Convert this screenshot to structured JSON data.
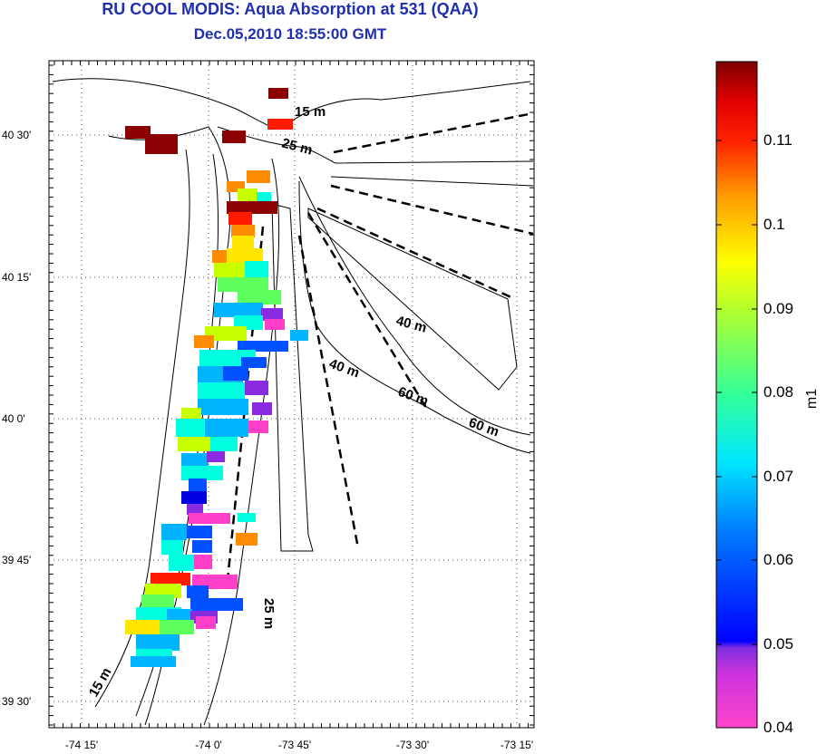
{
  "title": "RU COOL MODIS: Aqua Absorption at 531 (QAA)",
  "subtitle": "Dec.05,2010 18:55:00 GMT",
  "map": {
    "x_ticks": [
      "-74 15'",
      "-74 0'",
      "-73 45'",
      "-73 30'",
      "-73 15'"
    ],
    "y_ticks": [
      "40 30'",
      "40 15'",
      "40 0'",
      "39 45'",
      "39 30'"
    ],
    "contour_labels": [
      "15 m",
      "25 m",
      "40 m",
      "40 m",
      "60 m",
      "60 m",
      "25 m",
      "15 m"
    ],
    "grid": "dotted",
    "lon_range": [
      -74.33,
      -73.25
    ],
    "lat_range": [
      39.45,
      40.63
    ]
  },
  "colorbar": {
    "label": "m1",
    "ticks": [
      "0.11",
      "0.1",
      "0.09",
      "0.08",
      "0.07",
      "0.06",
      "0.05",
      "0.04"
    ],
    "range": [
      0.04,
      0.12
    ],
    "colormap": [
      "#ff44cc",
      "#7f2fe0",
      "#0000ff",
      "#00a0ff",
      "#00ffe8",
      "#66ff66",
      "#ffff00",
      "#ff9900",
      "#ff0000",
      "#7f0000"
    ]
  }
}
